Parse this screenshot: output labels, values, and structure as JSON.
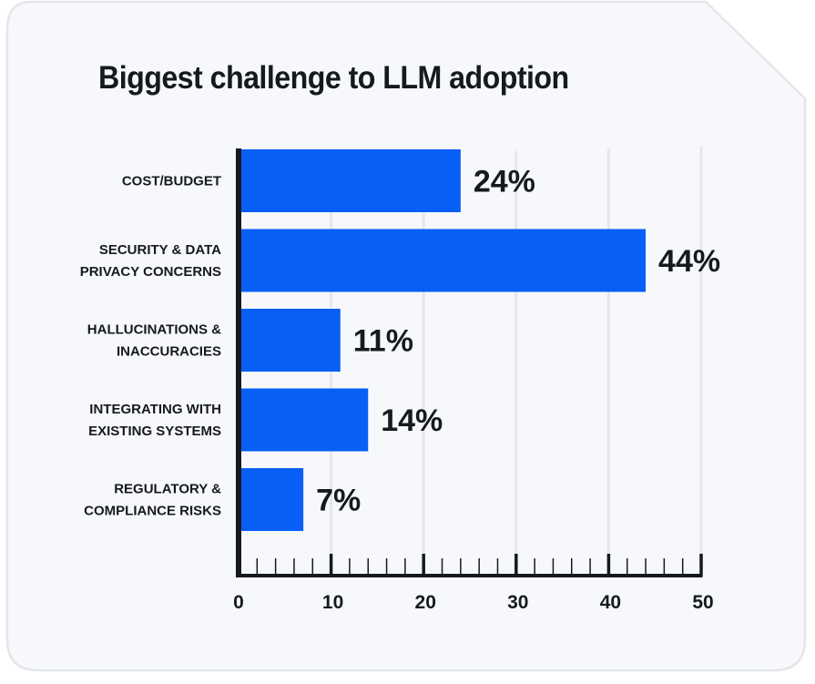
{
  "colors": {
    "card_bg": "#f7f8fc",
    "card_border": "#e4e6ea",
    "bar": "#075ff5",
    "axis": "#16191d",
    "grid": "#e6e7ea",
    "text": "#16191d"
  },
  "chart_data": {
    "type": "bar",
    "orientation": "horizontal",
    "title": "Biggest challenge to LLM adoption",
    "xlabel": "",
    "ylabel": "",
    "categories": [
      [
        "COST/BUDGET"
      ],
      [
        "SECURITY & DATA",
        "PRIVACY CONCERNS"
      ],
      [
        "HALLUCINATIONS &",
        "INACCURACIES"
      ],
      [
        "INTEGRATING WITH",
        "EXISTING SYSTEMS"
      ],
      [
        "REGULATORY &",
        "COMPLIANCE RISKS"
      ]
    ],
    "values": [
      24,
      44,
      11,
      14,
      7
    ],
    "value_labels": [
      "24%",
      "44%",
      "11%",
      "14%",
      "7%"
    ],
    "xlim": [
      0,
      50
    ],
    "major_ticks": [
      0,
      10,
      20,
      30,
      40,
      50
    ],
    "tick_labels": [
      "0",
      "10",
      "20",
      "30",
      "40",
      "50"
    ],
    "minor_tick_step": 2,
    "grid": true,
    "legend": "none"
  }
}
